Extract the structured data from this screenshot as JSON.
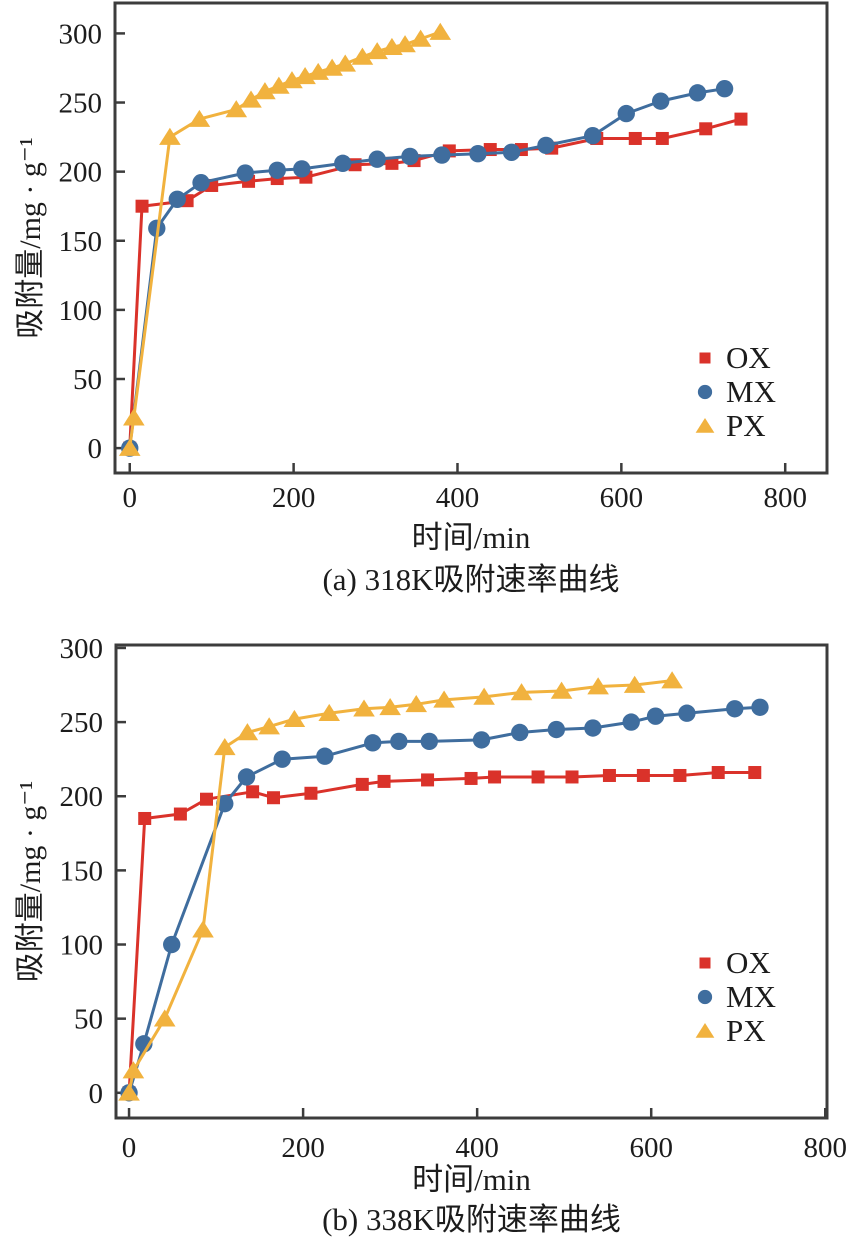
{
  "figure": {
    "background": "#ffffff",
    "axis_color": "#3c3c3c",
    "text_color": "#1c1c1c"
  },
  "chart_data": [
    {
      "type": "line",
      "panel": "a",
      "caption": "(a) 318K吸附速率曲线",
      "xlabel": "时间/min",
      "ylabel": "吸附量/mg · g⁻¹",
      "xticks": [
        0,
        200,
        400,
        600,
        800
      ],
      "yticks": [
        0,
        50,
        100,
        150,
        200,
        250,
        300
      ],
      "xlim": [
        -18,
        851
      ],
      "ylim": [
        -18,
        322
      ],
      "grid": false,
      "legend_position": "right-middle",
      "series": [
        {
          "name": "OX",
          "marker": "square",
          "color": "#da322a",
          "points": [
            [
              0,
              0
            ],
            [
              15,
              175
            ],
            [
              70,
              179
            ],
            [
              100,
              190
            ],
            [
              145,
              193
            ],
            [
              180,
              195
            ],
            [
              215,
              196
            ],
            [
              275,
              205
            ],
            [
              320,
              206
            ],
            [
              347,
              208
            ],
            [
              390,
              215
            ],
            [
              440,
              216
            ],
            [
              478,
              216
            ],
            [
              515,
              217
            ],
            [
              570,
              224
            ],
            [
              617,
              224
            ],
            [
              650,
              224
            ],
            [
              703,
              231
            ],
            [
              746,
              238
            ]
          ]
        },
        {
          "name": "MX",
          "marker": "circle",
          "color": "#3f6d9e",
          "points": [
            [
              0,
              0
            ],
            [
              33,
              159
            ],
            [
              58,
              180
            ],
            [
              87,
              192
            ],
            [
              141,
              199
            ],
            [
              180,
              201
            ],
            [
              210,
              202
            ],
            [
              260,
              206
            ],
            [
              302,
              209
            ],
            [
              342,
              211
            ],
            [
              381,
              212
            ],
            [
              425,
              213
            ],
            [
              466,
              214
            ],
            [
              508,
              219
            ],
            [
              565,
              226
            ],
            [
              606,
              242
            ],
            [
              648,
              251
            ],
            [
              693,
              257
            ],
            [
              726,
              260
            ]
          ]
        },
        {
          "name": "PX",
          "marker": "triangle",
          "color": "#f1b23e",
          "points": [
            [
              0,
              0
            ],
            [
              5,
              22
            ],
            [
              49,
              225
            ],
            [
              85,
              238
            ],
            [
              130,
              245
            ],
            [
              148,
              252
            ],
            [
              165,
              258
            ],
            [
              182,
              262
            ],
            [
              198,
              266
            ],
            [
              214,
              269
            ],
            [
              230,
              272
            ],
            [
              247,
              275
            ],
            [
              263,
              278
            ],
            [
              284,
              283
            ],
            [
              302,
              287
            ],
            [
              320,
              290
            ],
            [
              336,
              292
            ],
            [
              355,
              296
            ],
            [
              379,
              301
            ]
          ]
        }
      ]
    },
    {
      "type": "line",
      "panel": "b",
      "caption": "(b) 338K吸附速率曲线",
      "xlabel": "时间/min",
      "ylabel": "吸附量/mg · g⁻¹",
      "xticks": [
        0,
        200,
        400,
        600,
        800
      ],
      "yticks": [
        0,
        50,
        100,
        150,
        200,
        250,
        300
      ],
      "xlim": [
        -15,
        802
      ],
      "ylim": [
        -17,
        302
      ],
      "grid": false,
      "legend_position": "right-middle",
      "series": [
        {
          "name": "OX",
          "marker": "square",
          "color": "#da322a",
          "points": [
            [
              0,
              0
            ],
            [
              18,
              185
            ],
            [
              59,
              188
            ],
            [
              89,
              198
            ],
            [
              142,
              203
            ],
            [
              166,
              199
            ],
            [
              209,
              202
            ],
            [
              268,
              208
            ],
            [
              293,
              210
            ],
            [
              343,
              211
            ],
            [
              393,
              212
            ],
            [
              420,
              213
            ],
            [
              470,
              213
            ],
            [
              509,
              213
            ],
            [
              552,
              214
            ],
            [
              591,
              214
            ],
            [
              633,
              214
            ],
            [
              677,
              216
            ],
            [
              719,
              216
            ]
          ]
        },
        {
          "name": "MX",
          "marker": "circle",
          "color": "#3f6d9e",
          "points": [
            [
              0,
              0
            ],
            [
              17,
              33
            ],
            [
              49,
              100
            ],
            [
              110,
              195
            ],
            [
              135,
              213
            ],
            [
              176,
              225
            ],
            [
              225,
              227
            ],
            [
              280,
              236
            ],
            [
              310,
              237
            ],
            [
              345,
              237
            ],
            [
              405,
              238
            ],
            [
              449,
              243
            ],
            [
              491,
              245
            ],
            [
              533,
              246
            ],
            [
              577,
              250
            ],
            [
              605,
              254
            ],
            [
              641,
              256
            ],
            [
              696,
              259
            ],
            [
              725,
              260
            ]
          ]
        },
        {
          "name": "PX",
          "marker": "triangle",
          "color": "#f1b23e",
          "points": [
            [
              0,
              0
            ],
            [
              5,
              15
            ],
            [
              41,
              50
            ],
            [
              85,
              110
            ],
            [
              110,
              233
            ],
            [
              136,
              243
            ],
            [
              161,
              247
            ],
            [
              190,
              252
            ],
            [
              230,
              256
            ],
            [
              270,
              259
            ],
            [
              300,
              260
            ],
            [
              330,
              262
            ],
            [
              362,
              265
            ],
            [
              408,
              267
            ],
            [
              451,
              270
            ],
            [
              497,
              271
            ],
            [
              539,
              274
            ],
            [
              581,
              275
            ],
            [
              624,
              278
            ]
          ]
        }
      ]
    }
  ]
}
